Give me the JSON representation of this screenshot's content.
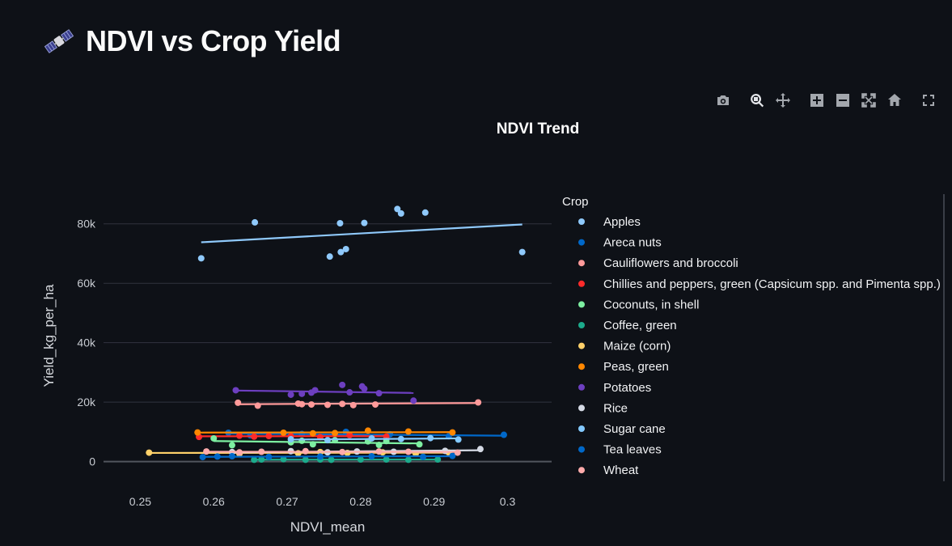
{
  "page": {
    "title": "NDVI vs Crop Yield"
  },
  "modebar": {
    "buttons": [
      "camera-icon",
      "zoom-icon",
      "pan-icon",
      "zoom-in-icon",
      "zoom-out-icon",
      "autoscale-icon",
      "reset-axes-icon",
      "fullscreen-icon"
    ]
  },
  "chart_data": {
    "type": "scatter",
    "title": "NDVI Trend",
    "xlabel": "NDVI_mean",
    "ylabel": "Yield_kg_per_ha",
    "xlim": [
      0.245,
      0.306
    ],
    "ylim": [
      -8000,
      90000
    ],
    "xticks": [
      0.25,
      0.26,
      0.27,
      0.28,
      0.29,
      0.3
    ],
    "xtick_labels": [
      "0.25",
      "0.26",
      "0.27",
      "0.28",
      "0.29",
      "0.3"
    ],
    "yticks": [
      0,
      20000,
      40000,
      60000,
      80000
    ],
    "ytick_labels": [
      "0",
      "20k",
      "40k",
      "60k",
      "80k"
    ],
    "grid": true,
    "legend_title": "Crop",
    "legend_position": "right",
    "trendline": "ols",
    "series": [
      {
        "name": "Apples",
        "color": "#8fc9fb",
        "x": [
          0.2583,
          0.2656,
          0.2758,
          0.2772,
          0.2773,
          0.278,
          0.2805,
          0.285,
          0.2855,
          0.2888,
          0.302
        ],
        "y": [
          68400,
          80500,
          69000,
          80200,
          70500,
          71500,
          80300,
          85000,
          83500,
          83800,
          70500
        ],
        "trend": [
          [
            0.2583,
            73800
          ],
          [
            0.302,
            79800
          ]
        ]
      },
      {
        "name": "Areca nuts",
        "color": "#0068c9",
        "x": [
          0.262,
          0.265,
          0.272,
          0.278,
          0.284,
          0.292,
          0.2995
        ],
        "y": [
          9700,
          8800,
          9300,
          10000,
          9200,
          8500,
          9000
        ],
        "trend": [
          [
            0.262,
            9400
          ],
          [
            0.2995,
            8700
          ]
        ]
      },
      {
        "name": "Cauliflowers and broccoli",
        "color": "#ff9a9a",
        "x": [
          0.2633,
          0.266,
          0.2715,
          0.272,
          0.2733,
          0.2755,
          0.2775,
          0.279,
          0.282,
          0.296
        ],
        "y": [
          19800,
          18800,
          19500,
          19300,
          19200,
          19100,
          19400,
          19000,
          19200,
          19900
        ],
        "trend": [
          [
            0.2633,
            19300
          ],
          [
            0.296,
            19700
          ]
        ]
      },
      {
        "name": "Chillies and peppers, green (Capsicum spp. and Pimenta spp.)",
        "color": "#ff2b2b",
        "x": [
          0.258,
          0.2635,
          0.2655,
          0.2675,
          0.2705,
          0.2745,
          0.2785,
          0.2835
        ],
        "y": [
          8300,
          8700,
          8400,
          8600,
          8500,
          8200,
          8900,
          8400
        ],
        "trend": [
          [
            0.258,
            8500
          ],
          [
            0.2835,
            8550
          ]
        ]
      },
      {
        "name": "Coconuts, in shell",
        "color": "#7defa1",
        "x": [
          0.26,
          0.2625,
          0.2705,
          0.272,
          0.2735,
          0.2765,
          0.281,
          0.2825,
          0.2835,
          0.288
        ],
        "y": [
          7800,
          5500,
          6500,
          7000,
          5800,
          7200,
          6800,
          5600,
          6900,
          5800
        ],
        "trend": [
          [
            0.26,
            6900
          ],
          [
            0.288,
            6100
          ]
        ]
      },
      {
        "name": "Coffee, green",
        "color": "#1cab8c",
        "x": [
          0.2655,
          0.2665,
          0.2695,
          0.2725,
          0.2745,
          0.276,
          0.28,
          0.2835,
          0.2865,
          0.2905
        ],
        "y": [
          600,
          700,
          800,
          600,
          700,
          600,
          700,
          700,
          600,
          700
        ],
        "trend": [
          [
            0.2655,
            650
          ],
          [
            0.2905,
            700
          ]
        ]
      },
      {
        "name": "Maize (corn)",
        "color": "#ffd16a",
        "x": [
          0.2512,
          0.2635,
          0.2715,
          0.2745,
          0.2782,
          0.283,
          0.2875,
          0.292
        ],
        "y": [
          3000,
          2600,
          2800,
          3200,
          2900,
          3100,
          2700,
          3000
        ],
        "trend": [
          [
            0.2512,
            2900
          ],
          [
            0.292,
            3000
          ]
        ]
      },
      {
        "name": "Peas, green",
        "color": "#ff8700",
        "x": [
          0.2578,
          0.2695,
          0.2735,
          0.2765,
          0.281,
          0.2865,
          0.2925
        ],
        "y": [
          9800,
          9700,
          9500,
          9600,
          10400,
          10100,
          9800
        ],
        "trend": [
          [
            0.2578,
            9750
          ],
          [
            0.2925,
            9900
          ]
        ]
      },
      {
        "name": "Potatoes",
        "color": "#6d3fc0",
        "x": [
          0.263,
          0.2705,
          0.272,
          0.2733,
          0.2738,
          0.2775,
          0.2785,
          0.2802,
          0.2805,
          0.2825,
          0.2872
        ],
        "y": [
          24000,
          22500,
          22800,
          23200,
          24000,
          25800,
          23300,
          25300,
          24500,
          23000,
          20500
        ],
        "trend": [
          [
            0.263,
            23900
          ],
          [
            0.2872,
            23100
          ]
        ]
      },
      {
        "name": "Rice",
        "color": "#d5dae5",
        "x": [
          0.2625,
          0.2705,
          0.2755,
          0.2795,
          0.2845,
          0.2915,
          0.2963
        ],
        "y": [
          3200,
          3500,
          3100,
          3400,
          3300,
          3600,
          4200
        ],
        "trend": [
          [
            0.2625,
            3100
          ],
          [
            0.2963,
            3800
          ]
        ]
      },
      {
        "name": "Sugar cane",
        "color": "#83c9ff",
        "x": [
          0.2705,
          0.2755,
          0.2815,
          0.2855,
          0.2895,
          0.2933
        ],
        "y": [
          7500,
          7200,
          7800,
          7600,
          7900,
          7400
        ],
        "trend": [
          [
            0.2705,
            7400
          ],
          [
            0.2933,
            7800
          ]
        ]
      },
      {
        "name": "Tea leaves",
        "color": "#0068c9",
        "x": [
          0.2585,
          0.2605,
          0.2625,
          0.2675,
          0.2745,
          0.2815,
          0.2885,
          0.2925
        ],
        "y": [
          1500,
          1700,
          1800,
          1600,
          1700,
          1800,
          1600,
          1900
        ],
        "trend": [
          [
            0.2585,
            1600
          ],
          [
            0.2925,
            1800
          ]
        ]
      },
      {
        "name": "Wheat",
        "color": "#ffabab",
        "x": [
          0.259,
          0.2635,
          0.2665,
          0.2725,
          0.2775,
          0.2825,
          0.2865,
          0.2932
        ],
        "y": [
          3400,
          3100,
          3300,
          3500,
          3200,
          3400,
          3300,
          3000
        ],
        "trend": [
          [
            0.259,
            3300
          ],
          [
            0.2932,
            3250
          ]
        ]
      }
    ]
  }
}
